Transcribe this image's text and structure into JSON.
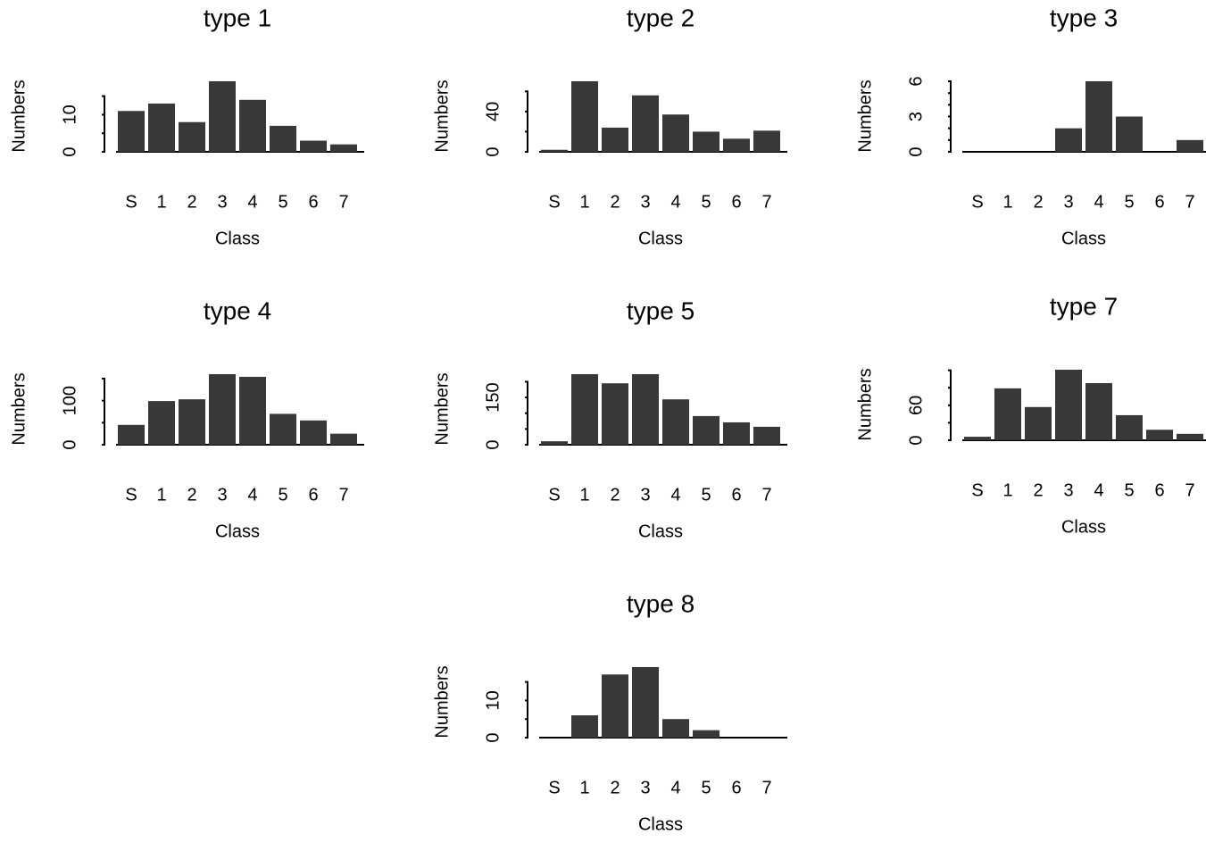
{
  "chart_data": [
    {
      "type": "bar",
      "title": "type 1",
      "xlabel": "Class",
      "ylabel": "Numbers",
      "categories": [
        "S",
        "1",
        "2",
        "3",
        "4",
        "5",
        "6",
        "7"
      ],
      "values": [
        11,
        13,
        8,
        19,
        14,
        7,
        3,
        2
      ],
      "color": "#383838",
      "ylim": [
        0,
        19
      ],
      "yticks": [
        0,
        10
      ],
      "yticks_minor": [
        5,
        15
      ]
    },
    {
      "type": "bar",
      "title": "type 2",
      "xlabel": "Class",
      "ylabel": "Numbers",
      "categories": [
        "S",
        "1",
        "2",
        "3",
        "4",
        "5",
        "6",
        "7"
      ],
      "values": [
        2,
        70,
        24,
        56,
        37,
        20,
        13,
        21
      ],
      "color": "#383838",
      "ylim": [
        0,
        70
      ],
      "yticks": [
        0,
        40
      ],
      "yticks_minor": [
        20,
        60
      ]
    },
    {
      "type": "bar",
      "title": "type 3",
      "xlabel": "Class",
      "ylabel": "Numbers",
      "categories": [
        "S",
        "1",
        "2",
        "3",
        "4",
        "5",
        "6",
        "7"
      ],
      "values": [
        0,
        0,
        0,
        2,
        6,
        3,
        0,
        1
      ],
      "color": "#383838",
      "ylim": [
        0,
        6
      ],
      "yticks": [
        0,
        3,
        6
      ],
      "yticks_minor": [
        1,
        2,
        4,
        5
      ]
    },
    {
      "type": "bar",
      "title": "type 4",
      "xlabel": "Class",
      "ylabel": "Numbers",
      "categories": [
        "S",
        "1",
        "2",
        "3",
        "4",
        "5",
        "6",
        "7"
      ],
      "values": [
        45,
        99,
        103,
        160,
        154,
        70,
        55,
        25
      ],
      "color": "#383838",
      "ylim": [
        0,
        160
      ],
      "yticks": [
        0,
        100
      ],
      "yticks_minor": [
        50,
        150
      ]
    },
    {
      "type": "bar",
      "title": "type 5",
      "xlabel": "Class",
      "ylabel": "Numbers",
      "categories": [
        "S",
        "1",
        "2",
        "3",
        "4",
        "5",
        "6",
        "7"
      ],
      "values": [
        11,
        224,
        195,
        224,
        144,
        91,
        71,
        57
      ],
      "color": "#383838",
      "ylim": [
        0,
        224
      ],
      "yticks": [
        0,
        150
      ],
      "yticks_minor": [
        50,
        100,
        200
      ]
    },
    {
      "type": "bar",
      "title": "type 7",
      "xlabel": "Class",
      "ylabel": "Numbers",
      "categories": [
        "S",
        "1",
        "2",
        "3",
        "4",
        "5",
        "6",
        "7"
      ],
      "values": [
        6,
        89,
        57,
        121,
        98,
        43,
        18,
        11
      ],
      "color": "#383838",
      "ylim": [
        0,
        121
      ],
      "yticks": [
        0,
        60
      ],
      "yticks_minor": [
        30,
        90,
        120
      ]
    },
    {
      "type": "bar",
      "title": "type 8",
      "xlabel": "Class",
      "ylabel": "Numbers",
      "categories": [
        "S",
        "1",
        "2",
        "3",
        "4",
        "5",
        "6",
        "7"
      ],
      "values": [
        0,
        6,
        17,
        19,
        5,
        2,
        0,
        0
      ],
      "color": "#383838",
      "ylim": [
        0,
        19
      ],
      "yticks": [
        0,
        10
      ],
      "yticks_minor": [
        5,
        15
      ]
    }
  ]
}
